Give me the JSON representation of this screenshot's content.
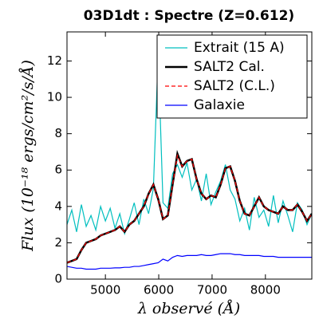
{
  "chart_data": {
    "type": "line",
    "title": "03D1dt : Spectre (Z=0.612)",
    "x_label": "λ observé (Å)",
    "y_label": "Flux (10⁻¹⁸ ergs/cm²/s/Å)",
    "x": [
      4280,
      4370,
      4460,
      4550,
      4640,
      4730,
      4820,
      4910,
      5000,
      5090,
      5180,
      5270,
      5360,
      5450,
      5540,
      5630,
      5720,
      5810,
      5900,
      5990,
      6080,
      6170,
      6260,
      6350,
      6440,
      6530,
      6620,
      6710,
      6800,
      6890,
      6980,
      7070,
      7160,
      7250,
      7340,
      7430,
      7520,
      7610,
      7700,
      7790,
      7880,
      7970,
      8060,
      8150,
      8240,
      8330,
      8420,
      8510,
      8600,
      8690,
      8780,
      8870
    ],
    "series": [
      {
        "name": "Extrait (15 A)",
        "color": "#00bfbf",
        "width": 1.2,
        "dash": "none",
        "values": [
          3.0,
          3.8,
          2.6,
          4.1,
          2.9,
          3.5,
          2.7,
          4.0,
          3.2,
          3.9,
          2.8,
          3.6,
          2.5,
          3.3,
          4.2,
          3.0,
          4.4,
          3.6,
          5.0,
          12.4,
          4.2,
          3.9,
          5.8,
          6.3,
          5.6,
          6.4,
          4.9,
          5.5,
          4.3,
          5.8,
          4.1,
          4.8,
          5.4,
          6.3,
          4.9,
          4.4,
          3.2,
          3.9,
          2.7,
          4.5,
          3.4,
          3.8,
          2.9,
          4.6,
          3.1,
          4.3,
          3.5,
          2.6,
          4.2,
          3.8,
          3.0,
          3.6
        ]
      },
      {
        "name": "SALT2 Cal.",
        "color": "#000000",
        "width": 2.5,
        "dash": "none",
        "values": [
          0.9,
          1.0,
          1.1,
          1.6,
          2.0,
          2.1,
          2.2,
          2.4,
          2.5,
          2.6,
          2.7,
          2.9,
          2.6,
          3.0,
          3.2,
          3.6,
          4.0,
          4.7,
          5.2,
          4.4,
          3.3,
          3.5,
          5.2,
          6.9,
          6.2,
          6.5,
          6.6,
          5.5,
          4.7,
          4.4,
          4.6,
          4.5,
          5.2,
          6.1,
          6.2,
          5.4,
          4.3,
          3.6,
          3.5,
          4.0,
          4.5,
          4.0,
          3.8,
          3.7,
          3.6,
          4.0,
          3.8,
          3.8,
          4.1,
          3.7,
          3.2,
          3.6
        ]
      },
      {
        "name": "SALT2 (C.L.)",
        "color": "#ff0000",
        "width": 1.2,
        "dash": "5,3",
        "values": [
          0.9,
          1.0,
          1.1,
          1.6,
          2.0,
          2.1,
          2.2,
          2.4,
          2.5,
          2.6,
          2.7,
          2.9,
          2.6,
          3.0,
          3.2,
          3.6,
          4.0,
          4.7,
          5.2,
          4.4,
          3.3,
          3.5,
          5.2,
          6.8,
          6.2,
          6.5,
          6.6,
          5.5,
          4.7,
          4.4,
          4.6,
          4.5,
          5.2,
          6.1,
          6.2,
          5.4,
          4.3,
          3.6,
          3.5,
          4.0,
          4.5,
          4.0,
          3.8,
          3.7,
          3.6,
          4.0,
          3.8,
          3.8,
          4.1,
          3.7,
          3.2,
          3.6
        ]
      },
      {
        "name": "Galaxie",
        "color": "#0000ff",
        "width": 1.2,
        "dash": "none",
        "values": [
          0.7,
          0.65,
          0.6,
          0.6,
          0.55,
          0.55,
          0.55,
          0.6,
          0.6,
          0.6,
          0.62,
          0.62,
          0.65,
          0.65,
          0.7,
          0.7,
          0.75,
          0.8,
          0.85,
          0.9,
          1.1,
          1.0,
          1.2,
          1.3,
          1.25,
          1.3,
          1.3,
          1.3,
          1.35,
          1.3,
          1.3,
          1.35,
          1.4,
          1.4,
          1.4,
          1.35,
          1.35,
          1.3,
          1.3,
          1.3,
          1.3,
          1.25,
          1.25,
          1.25,
          1.2,
          1.2,
          1.2,
          1.2,
          1.2,
          1.2,
          1.2,
          1.2
        ]
      }
    ],
    "xlim": [
      4280,
      8870
    ],
    "ylim": [
      0,
      13.6
    ],
    "xticks": [
      5000,
      6000,
      7000,
      8000
    ],
    "yticks": [
      0,
      2,
      4,
      6,
      8,
      10,
      12
    ],
    "legend": "upper right"
  }
}
